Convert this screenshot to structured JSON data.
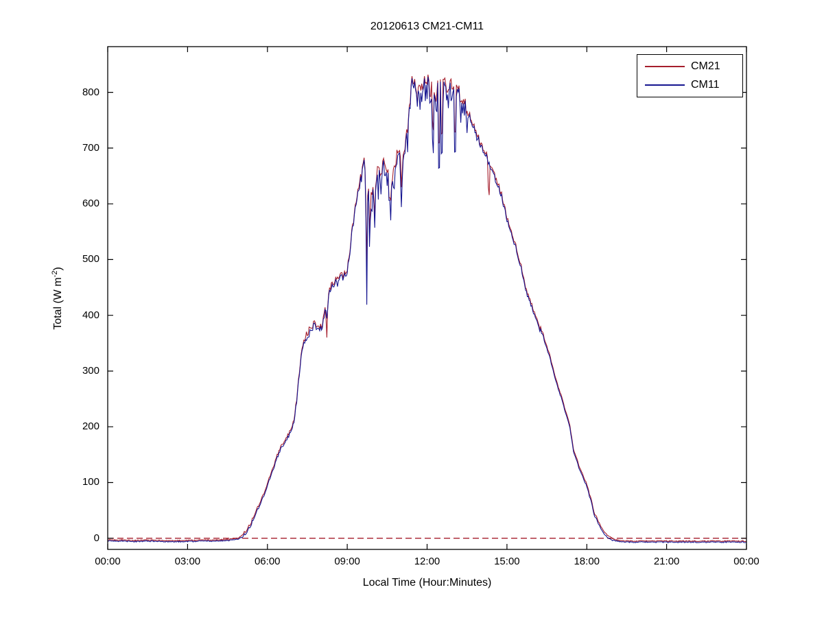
{
  "window": {
    "background": "#ffffff"
  },
  "chart_data": {
    "type": "line",
    "title": "20120613 CM21-CM11",
    "xlabel": "Local Time (Hour:Minutes)",
    "ylabel": {
      "prefix": "Total (W m",
      "sup": "-2",
      "suffix": ")"
    },
    "x_unit": "hours",
    "y_unit": "W m-2",
    "xlim_hours": [
      0,
      24
    ],
    "ylim": [
      -20,
      882
    ],
    "grid": false,
    "x_ticks": [
      {
        "t": 0,
        "label": "00:00"
      },
      {
        "t": 3,
        "label": "03:00"
      },
      {
        "t": 6,
        "label": "06:00"
      },
      {
        "t": 9,
        "label": "09:00"
      },
      {
        "t": 12,
        "label": "12:00"
      },
      {
        "t": 15,
        "label": "15:00"
      },
      {
        "t": 18,
        "label": "18:00"
      },
      {
        "t": 21,
        "label": "21:00"
      },
      {
        "t": 24,
        "label": "00:00"
      }
    ],
    "y_ticks": [
      0,
      100,
      200,
      300,
      400,
      500,
      600,
      700,
      800
    ],
    "legend_position": "top-right",
    "series": [
      {
        "name": "CM21",
        "color": "#a51e2c",
        "line_style": "solid"
      },
      {
        "name": "CM11",
        "color": "#14148f",
        "line_style": "solid"
      }
    ],
    "zero_line": {
      "value": 0,
      "color": "#a51e2c",
      "line_style": "dashed"
    },
    "sample_step_minutes": 2,
    "envelope_cm21": [
      [
        0,
        -3
      ],
      [
        0.5,
        -3
      ],
      [
        1,
        -4
      ],
      [
        1.5,
        -3
      ],
      [
        2,
        -4
      ],
      [
        2.5,
        -4
      ],
      [
        3,
        -4
      ],
      [
        3.5,
        -3
      ],
      [
        4,
        -3
      ],
      [
        4.5,
        -2
      ],
      [
        4.8,
        -1
      ],
      [
        4.95,
        2
      ],
      [
        5.1,
        8
      ],
      [
        5.25,
        18
      ],
      [
        5.4,
        30
      ],
      [
        5.55,
        45
      ],
      [
        5.7,
        62
      ],
      [
        5.85,
        80
      ],
      [
        6,
        97
      ],
      [
        6.15,
        118
      ],
      [
        6.3,
        140
      ],
      [
        6.45,
        158
      ],
      [
        6.6,
        172
      ],
      [
        6.75,
        183
      ],
      [
        6.9,
        196
      ],
      [
        7,
        215
      ],
      [
        7.1,
        252
      ],
      [
        7.2,
        300
      ],
      [
        7.3,
        335
      ],
      [
        7.4,
        358
      ],
      [
        7.5,
        368
      ],
      [
        7.6,
        375
      ],
      [
        7.75,
        388
      ],
      [
        7.9,
        382
      ],
      [
        8.05,
        380
      ],
      [
        8.15,
        405
      ],
      [
        8.25,
        428
      ],
      [
        8.4,
        455
      ],
      [
        8.55,
        462
      ],
      [
        8.7,
        468
      ],
      [
        8.85,
        474
      ],
      [
        9,
        483
      ],
      [
        9.1,
        520
      ],
      [
        9.2,
        560
      ],
      [
        9.3,
        592
      ],
      [
        9.4,
        620
      ],
      [
        9.5,
        645
      ],
      [
        9.6,
        678
      ],
      [
        9.68,
        668
      ],
      [
        9.78,
        645
      ],
      [
        9.88,
        610
      ],
      [
        9.98,
        618
      ],
      [
        10.08,
        648
      ],
      [
        10.2,
        660
      ],
      [
        10.32,
        668
      ],
      [
        10.45,
        680
      ],
      [
        10.55,
        648
      ],
      [
        10.63,
        610
      ],
      [
        10.72,
        645
      ],
      [
        10.82,
        678
      ],
      [
        10.92,
        698
      ],
      [
        11.02,
        688
      ],
      [
        11.12,
        684
      ],
      [
        11.25,
        725
      ],
      [
        11.35,
        788
      ],
      [
        11.45,
        828
      ],
      [
        11.52,
        818
      ],
      [
        11.62,
        790
      ],
      [
        11.72,
        802
      ],
      [
        11.82,
        815
      ],
      [
        11.92,
        820
      ],
      [
        12.02,
        822
      ],
      [
        12.12,
        802
      ],
      [
        12.22,
        812
      ],
      [
        12.32,
        795
      ],
      [
        12.42,
        812
      ],
      [
        12.52,
        820
      ],
      [
        12.6,
        834
      ],
      [
        12.7,
        818
      ],
      [
        12.8,
        802
      ],
      [
        12.9,
        814
      ],
      [
        13,
        806
      ],
      [
        13.1,
        812
      ],
      [
        13.2,
        800
      ],
      [
        13.3,
        792
      ],
      [
        13.42,
        778
      ],
      [
        13.56,
        764
      ],
      [
        13.74,
        742
      ],
      [
        13.92,
        720
      ],
      [
        14.05,
        702
      ],
      [
        14.2,
        694
      ],
      [
        14.35,
        672
      ],
      [
        14.5,
        656
      ],
      [
        14.65,
        638
      ],
      [
        14.8,
        620
      ],
      [
        14.95,
        585
      ],
      [
        15.1,
        556
      ],
      [
        15.25,
        538
      ],
      [
        15.4,
        512
      ],
      [
        15.55,
        486
      ],
      [
        15.7,
        452
      ],
      [
        15.85,
        430
      ],
      [
        16,
        408
      ],
      [
        16.15,
        388
      ],
      [
        16.3,
        372
      ],
      [
        16.45,
        352
      ],
      [
        16.6,
        330
      ],
      [
        16.75,
        302
      ],
      [
        16.9,
        276
      ],
      [
        17.05,
        255
      ],
      [
        17.2,
        228
      ],
      [
        17.35,
        205
      ],
      [
        17.5,
        160
      ],
      [
        17.65,
        138
      ],
      [
        17.8,
        118
      ],
      [
        17.95,
        103
      ],
      [
        18.1,
        80
      ],
      [
        18.2,
        63
      ],
      [
        18.28,
        46
      ],
      [
        18.4,
        34
      ],
      [
        18.5,
        24
      ],
      [
        18.6,
        15
      ],
      [
        18.7,
        9
      ],
      [
        18.85,
        3
      ],
      [
        19,
        -1
      ],
      [
        19.2,
        -4
      ],
      [
        19.5,
        -5
      ],
      [
        20,
        -5
      ],
      [
        20.5,
        -5
      ],
      [
        21,
        -5
      ],
      [
        21.5,
        -5
      ],
      [
        22,
        -5
      ],
      [
        22.5,
        -5
      ],
      [
        23,
        -5
      ],
      [
        23.5,
        -5
      ],
      [
        24,
        -5
      ]
    ],
    "cm11_offset": {
      "night": 2,
      "day": 4
    },
    "cm11_cloud_extra_dip_max": 55,
    "noise_windows": [
      {
        "from": 0,
        "to": 5.1,
        "amp": 1
      },
      {
        "from": 5.1,
        "to": 7.0,
        "amp": 3
      },
      {
        "from": 7.0,
        "to": 9.45,
        "amp": 7
      },
      {
        "from": 9.45,
        "to": 13.55,
        "amp": 14
      },
      {
        "from": 13.55,
        "to": 14.9,
        "amp": 6
      },
      {
        "from": 14.9,
        "to": 16.4,
        "amp": 5
      },
      {
        "from": 16.4,
        "to": 18.6,
        "amp": 2
      },
      {
        "from": 18.6,
        "to": 24,
        "amp": 1
      }
    ],
    "cloud_dips": [
      {
        "t": 8.23,
        "cm21": 355,
        "cm11": 392
      },
      {
        "t": 9.73,
        "cm21": 468,
        "cm11": 400
      },
      {
        "t": 9.84,
        "cm21": 540,
        "cm11": 505
      },
      {
        "t": 10.03,
        "cm21": 575,
        "cm11": 551
      },
      {
        "t": 10.58,
        "cm21": 600,
        "cm11": 592
      },
      {
        "t": 11.04,
        "cm21": 620,
        "cm11": 578
      },
      {
        "t": 12.22,
        "cm21": 700,
        "cm11": 641
      },
      {
        "t": 12.45,
        "cm21": 648,
        "cm11": 576
      },
      {
        "t": 12.55,
        "cm21": 668,
        "cm11": 612
      },
      {
        "t": 13.05,
        "cm21": 682,
        "cm11": 625
      },
      {
        "t": 14.32,
        "cm21": 591,
        "cm11": 700
      }
    ]
  }
}
